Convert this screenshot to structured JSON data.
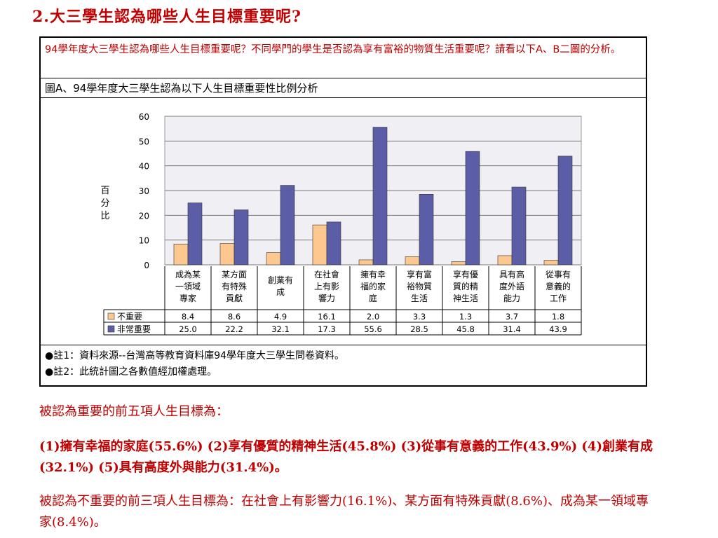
{
  "page": {
    "title": "2.大三學生認為哪些人生目標重要呢?",
    "intro": "94學年度大三學生認為哪些人生目標重要呢？不同學門的學生是否認為享有富裕的物質生活重要呢？請看以下A、B二圖的分析。",
    "caption": "圖A、94學年度大三學生認為以下人生目標重要性比例分析",
    "note1": "●註1：資料來源--台灣高等教育資料庫94學年度大三學生問卷資料。",
    "note2": "●註2：此統計圖之各數值經加權處理。",
    "text1": "被認為重要的前五項人生目標為：",
    "text2": "(1)擁有幸福的家庭(55.6%)  (2)享有優質的精神生活(45.8%) (3)從事有意義的工作(43.9%) (4)創業有成(32.1%)  (5)具有高度外與能力(31.4%)。",
    "text3": "被認為不重要的前三項人生目標為：在社會上有影響力(16.1%)、某方面有特殊貢獻(8.6%)、成為某一領域專家(8.4%)。"
  },
  "chart_data": {
    "type": "bar",
    "ylabel": "百分比",
    "ylim": [
      0,
      60
    ],
    "yticks": [
      0,
      10,
      20,
      30,
      40,
      50,
      60
    ],
    "grid": true,
    "legend": "table-left",
    "categories": [
      [
        "成為某",
        "一領域",
        "專家"
      ],
      [
        "某方面",
        "有特殊",
        "貢獻"
      ],
      [
        "創業有",
        "成"
      ],
      [
        "在社會",
        "上有影",
        "響力"
      ],
      [
        "擁有幸",
        "福的家",
        "庭"
      ],
      [
        "享有富",
        "裕物質",
        "生活"
      ],
      [
        "享有優",
        "質的精",
        "神生活"
      ],
      [
        "具有高",
        "度外語",
        "能力"
      ],
      [
        "從事有",
        "意義的",
        "工作"
      ]
    ],
    "series": [
      {
        "name": "不重要",
        "color": "#fcc88f",
        "values": [
          8.4,
          8.6,
          4.9,
          16.1,
          2.0,
          3.3,
          1.3,
          3.7,
          1.8
        ],
        "labels": [
          "8.4",
          "8.6",
          "4.9",
          "16.1",
          "2.0",
          "3.3",
          "1.3",
          "3.7",
          "1.8"
        ]
      },
      {
        "name": "非常重要",
        "color": "#5b5ea6",
        "values": [
          25.0,
          22.2,
          32.1,
          17.3,
          55.6,
          28.5,
          45.8,
          31.4,
          43.9
        ],
        "labels": [
          "25.0",
          "22.2",
          "32.1",
          "17.3",
          "55.6",
          "28.5",
          "45.8",
          "31.4",
          "43.9"
        ]
      }
    ]
  }
}
